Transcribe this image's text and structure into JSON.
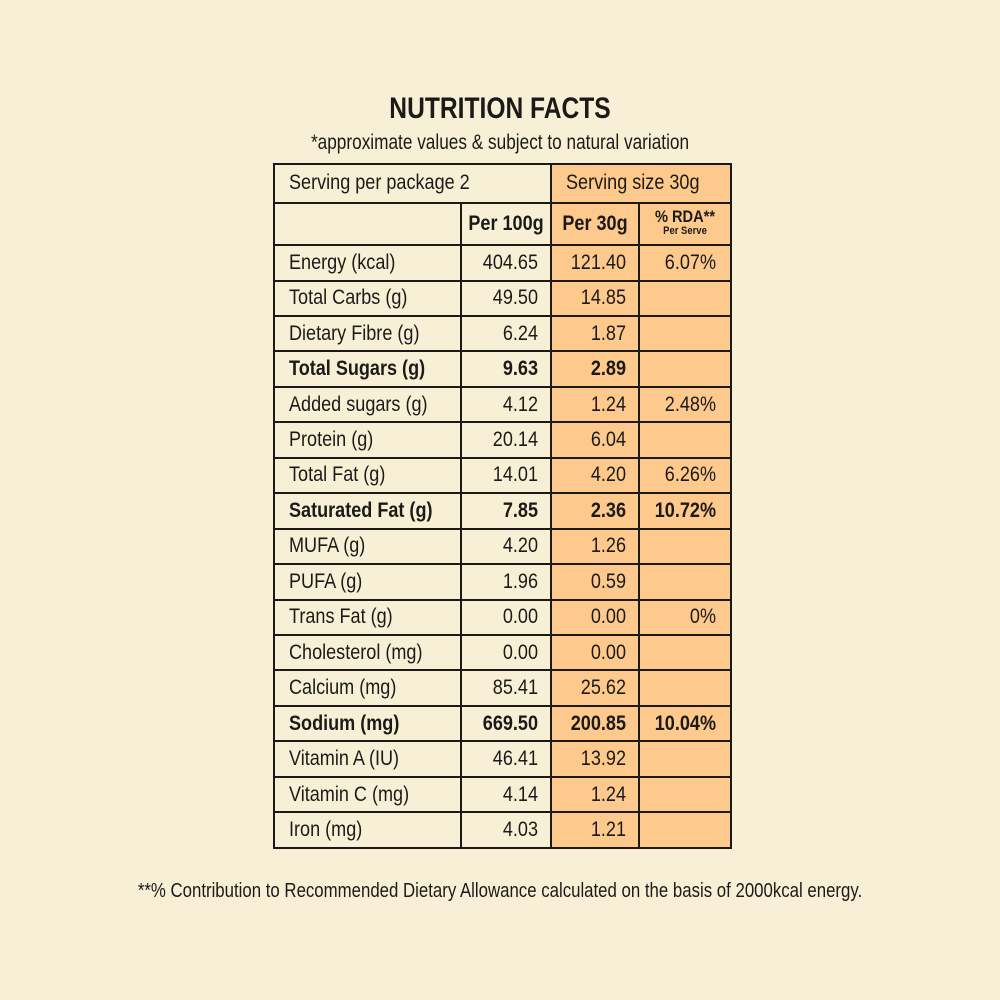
{
  "title": "NUTRITION FACTS",
  "subtitle": "*approximate values & subject to natural variation",
  "serving_per_package": "Serving per package 2",
  "serving_size": "Serving size 30g",
  "headers": {
    "per100": "Per 100g",
    "per30": "Per 30g",
    "rda": "% RDA**",
    "rda_sub": "Per Serve"
  },
  "rows": [
    {
      "label": "Energy (kcal)",
      "per100": "404.65",
      "per30": "121.40",
      "rda": "6.07%",
      "bold": false
    },
    {
      "label": "Total Carbs (g)",
      "per100": "49.50",
      "per30": "14.85",
      "rda": "",
      "bold": false
    },
    {
      "label": "Dietary Fibre (g)",
      "per100": "6.24",
      "per30": "1.87",
      "rda": "",
      "bold": false
    },
    {
      "label": "Total Sugars (g)",
      "per100": "9.63",
      "per30": "2.89",
      "rda": "",
      "bold": true
    },
    {
      "label": "Added sugars (g)",
      "per100": "4.12",
      "per30": "1.24",
      "rda": "2.48%",
      "bold": false
    },
    {
      "label": "Protein (g)",
      "per100": "20.14",
      "per30": "6.04",
      "rda": "",
      "bold": false
    },
    {
      "label": "Total Fat (g)",
      "per100": "14.01",
      "per30": "4.20",
      "rda": "6.26%",
      "bold": false
    },
    {
      "label": "Saturated Fat (g)",
      "per100": "7.85",
      "per30": "2.36",
      "rda": "10.72%",
      "bold": true
    },
    {
      "label": "MUFA (g)",
      "per100": "4.20",
      "per30": "1.26",
      "rda": "",
      "bold": false
    },
    {
      "label": "PUFA (g)",
      "per100": "1.96",
      "per30": "0.59",
      "rda": "",
      "bold": false
    },
    {
      "label": "Trans Fat (g)",
      "per100": "0.00",
      "per30": "0.00",
      "rda": "0%",
      "bold": false
    },
    {
      "label": "Cholesterol (mg)",
      "per100": "0.00",
      "per30": "0.00",
      "rda": "",
      "bold": false
    },
    {
      "label": "Calcium (mg)",
      "per100": "85.41",
      "per30": "25.62",
      "rda": "",
      "bold": false
    },
    {
      "label": "Sodium (mg)",
      "per100": "669.50",
      "per30": "200.85",
      "rda": "10.04%",
      "bold": true
    },
    {
      "label": "Vitamin A (IU)",
      "per100": "46.41",
      "per30": "13.92",
      "rda": "",
      "bold": false
    },
    {
      "label": "Vitamin C (mg)",
      "per100": "4.14",
      "per30": "1.24",
      "rda": "",
      "bold": false
    },
    {
      "label": "Iron (mg)",
      "per100": "4.03",
      "per30": "1.21",
      "rda": "",
      "bold": false
    }
  ],
  "footnote": "**% Contribution to Recommended Dietary Allowance calculated on the basis of 2000kcal energy.",
  "colors": {
    "background": "#f8f0d6",
    "highlight": "#fdc98c",
    "ink": "#1c1a17"
  }
}
